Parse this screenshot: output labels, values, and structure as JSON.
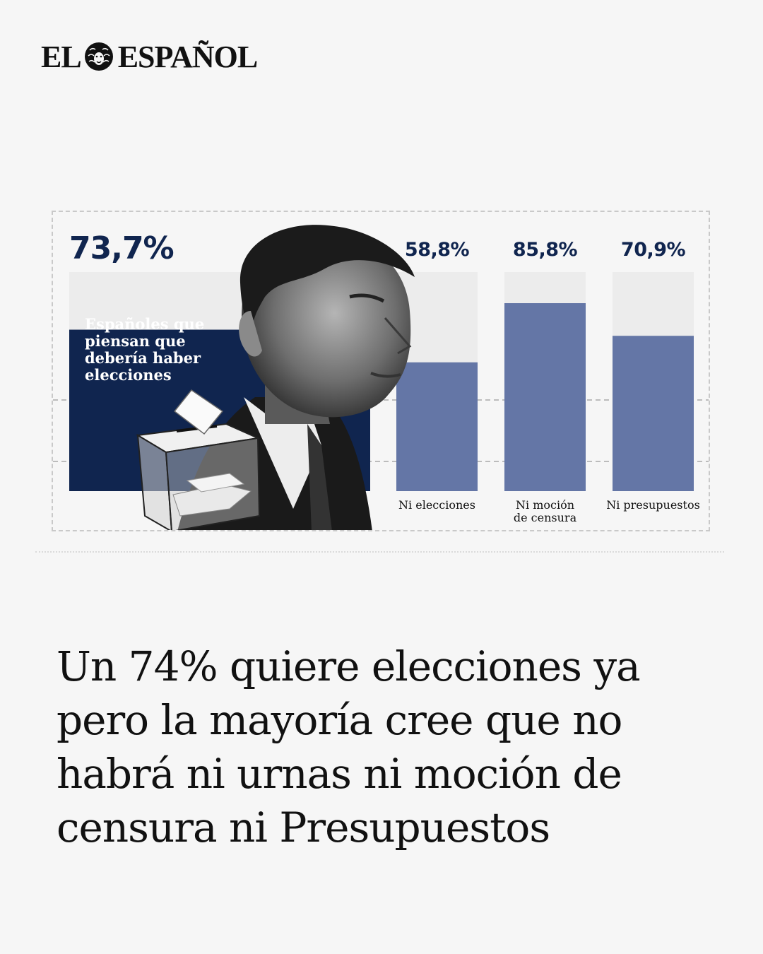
{
  "brand": {
    "name_left": "EL",
    "name_right": "ESPAÑOL",
    "logo_icon": "lion-head-icon"
  },
  "headline": "Un 74% quiere elecciones ya pero la mayoría cree que no habrá ni urnas ni moción de censura ni Presupuestos",
  "chart_data": {
    "type": "bar",
    "title": "",
    "xlabel": "",
    "ylabel": "",
    "ylim": [
      0,
      100
    ],
    "categories": [
      "Españoles que piensan que debería haber elecciones",
      "Ni elecciones",
      "Ni moción de censura",
      "Ni presupuestos"
    ],
    "category_lines": [
      [
        "Españoles que",
        "piensan que",
        "debería haber",
        "elecciones"
      ],
      [
        "Ni elecciones"
      ],
      [
        "Ni moción",
        "de censura"
      ],
      [
        "Ni presupuestos"
      ]
    ],
    "values": [
      73.7,
      58.8,
      85.8,
      70.9
    ],
    "value_labels": [
      "73,7%",
      "58,8%",
      "85,8%",
      "70,9%"
    ],
    "grid": true,
    "colors": {
      "featured_bar": "#10254f",
      "bar": "#6476a6",
      "track": "#ececec",
      "label": "#10254f",
      "grid": "#a8a8a8"
    },
    "illustration": [
      "politician-photo-icon",
      "ballot-box-icon"
    ]
  }
}
